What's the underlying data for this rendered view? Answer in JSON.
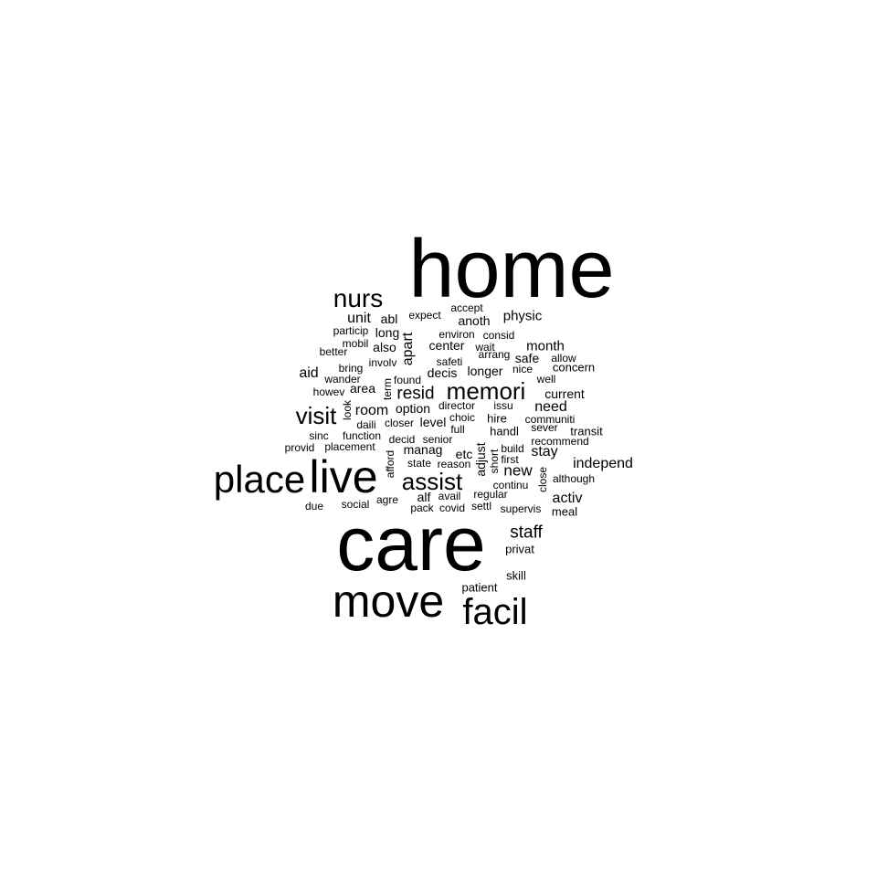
{
  "words": [
    {
      "text": "home"
    },
    {
      "text": "care"
    },
    {
      "text": "live"
    },
    {
      "text": "move"
    },
    {
      "text": "place"
    },
    {
      "text": "facil"
    },
    {
      "text": "memori"
    },
    {
      "text": "assist"
    },
    {
      "text": "nurs"
    },
    {
      "text": "visit"
    },
    {
      "text": "resid"
    },
    {
      "text": "staff"
    },
    {
      "text": "new"
    },
    {
      "text": "independ"
    },
    {
      "text": "need"
    },
    {
      "text": "month"
    },
    {
      "text": "unit"
    },
    {
      "text": "room"
    },
    {
      "text": "stay"
    },
    {
      "text": "activ"
    },
    {
      "text": "aid"
    },
    {
      "text": "apart"
    },
    {
      "text": "physic"
    },
    {
      "text": "option"
    },
    {
      "text": "level"
    },
    {
      "text": "current"
    },
    {
      "text": "safe"
    },
    {
      "text": "area"
    },
    {
      "text": "long"
    },
    {
      "text": "abl"
    },
    {
      "text": "also"
    },
    {
      "text": "center"
    },
    {
      "text": "decis"
    },
    {
      "text": "longer"
    },
    {
      "text": "anoth"
    },
    {
      "text": "manag"
    },
    {
      "text": "etc"
    },
    {
      "text": "adjust"
    },
    {
      "text": "alf"
    },
    {
      "text": "concern"
    },
    {
      "text": "hire"
    },
    {
      "text": "handl"
    },
    {
      "text": "transit"
    },
    {
      "text": "patient"
    },
    {
      "text": "skill"
    },
    {
      "text": "privat"
    },
    {
      "text": "meal"
    },
    {
      "text": "wait"
    },
    {
      "text": "allow"
    },
    {
      "text": "nice"
    },
    {
      "text": "issu"
    },
    {
      "text": "director"
    },
    {
      "text": "choic"
    },
    {
      "text": "full"
    },
    {
      "text": "closer"
    },
    {
      "text": "decid"
    },
    {
      "text": "senior"
    },
    {
      "text": "daili"
    },
    {
      "text": "function"
    },
    {
      "text": "placement"
    },
    {
      "text": "provid"
    },
    {
      "text": "sinc"
    },
    {
      "text": "howev"
    },
    {
      "text": "wander"
    },
    {
      "text": "better"
    },
    {
      "text": "bring"
    },
    {
      "text": "mobil"
    },
    {
      "text": "particip"
    },
    {
      "text": "involv"
    },
    {
      "text": "found"
    },
    {
      "text": "expect"
    },
    {
      "text": "accept"
    },
    {
      "text": "environ"
    },
    {
      "text": "consid"
    },
    {
      "text": "arrang"
    },
    {
      "text": "safeti"
    },
    {
      "text": "well"
    },
    {
      "text": "communiti"
    },
    {
      "text": "sever"
    },
    {
      "text": "recommend"
    },
    {
      "text": "build"
    },
    {
      "text": "first"
    },
    {
      "text": "short"
    },
    {
      "text": "close"
    },
    {
      "text": "although"
    },
    {
      "text": "continu"
    },
    {
      "text": "regular"
    },
    {
      "text": "supervis"
    },
    {
      "text": "settl"
    },
    {
      "text": "covid"
    },
    {
      "text": "pack"
    },
    {
      "text": "avail"
    },
    {
      "text": "agre"
    },
    {
      "text": "social"
    },
    {
      "text": "due"
    },
    {
      "text": "state"
    },
    {
      "text": "reason"
    },
    {
      "text": "afford"
    },
    {
      "text": "term"
    },
    {
      "text": "look"
    }
  ]
}
